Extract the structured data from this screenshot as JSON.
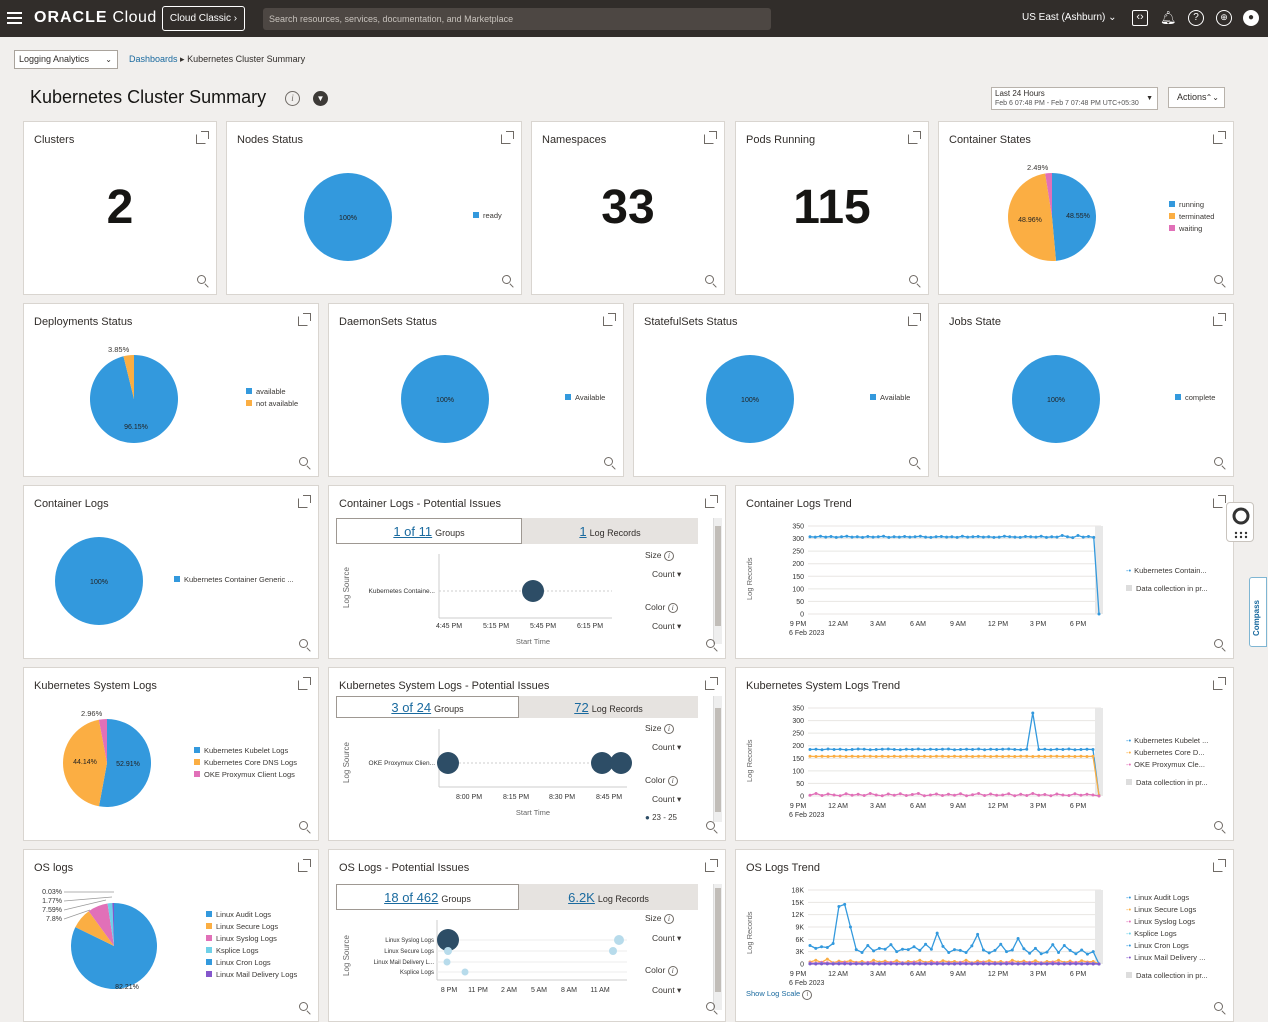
{
  "topbar": {
    "brand": "ORACLE",
    "brand_suffix": "Cloud",
    "classic_button": "Cloud Classic",
    "search_placeholder": "Search resources, services, documentation, and Marketplace",
    "region": "US East (Ashburn)"
  },
  "nav": {
    "service_select": "Logging Analytics",
    "crumb_link": "Dashboards",
    "crumb_current": "Kubernetes Cluster Summary"
  },
  "page": {
    "title": "Kubernetes Cluster Summary",
    "time_label": "Last 24 Hours",
    "time_range": "Feb 6 07:48 PM - Feb 7 07:48 PM UTC+05:30",
    "actions_label": "Actions",
    "compass_label": "Compass"
  },
  "colors": {
    "blue": "#3399dd",
    "orange": "#fbae43",
    "pink": "#e170b8",
    "cyan": "#6fd0e8",
    "purple": "#8557cc",
    "dark_bubble": "#2d4d66",
    "light_bubble": "#b7dbeb"
  },
  "widgets": {
    "clusters": {
      "title": "Clusters",
      "value": "2"
    },
    "nodes": {
      "title": "Nodes Status",
      "slice_label": "100%",
      "legend": [
        "ready"
      ]
    },
    "namespaces": {
      "title": "Namespaces",
      "value": "33"
    },
    "pods": {
      "title": "Pods Running",
      "value": "115"
    },
    "container_states": {
      "title": "Container States",
      "labels": [
        "48.55%",
        "48.96%",
        "2.49%"
      ],
      "legend": [
        "running",
        "terminated",
        "waiting"
      ]
    },
    "deployments": {
      "title": "Deployments Status",
      "labels": [
        "96.15%",
        "3.85%"
      ],
      "legend": [
        "available",
        "not available"
      ]
    },
    "daemonsets": {
      "title": "DaemonSets Status",
      "slice_label": "100%",
      "legend": [
        "Available"
      ]
    },
    "statefulsets": {
      "title": "StatefulSets Status",
      "slice_label": "100%",
      "legend": [
        "Available"
      ]
    },
    "jobs": {
      "title": "Jobs State",
      "slice_label": "100%",
      "legend": [
        "complete"
      ]
    },
    "container_logs": {
      "title": "Container Logs",
      "slice_label": "100%",
      "legend": [
        "Kubernetes Container Generic ..."
      ]
    },
    "container_issues": {
      "title": "Container Logs - Potential Issues",
      "groups_link": "1 of 11",
      "groups_label": "Groups",
      "records_link": "1",
      "records_label": "Log Records",
      "y_axis": "Log Source",
      "x_axis": "Start Time",
      "rows": [
        "Kubernetes Containe..."
      ],
      "ticks": [
        "4:45 PM",
        "5:15 PM",
        "5:45 PM",
        "6:15 PM"
      ],
      "size_label": "Size",
      "size_value": "Count",
      "color_label": "Color",
      "color_value": "Count"
    },
    "container_trend": {
      "title": "Container Logs Trend",
      "y_axis": "Log Records",
      "y_ticks": [
        "350",
        "300",
        "250",
        "200",
        "150",
        "100",
        "50",
        "0"
      ],
      "x_ticks": [
        "9 PM",
        "12 AM",
        "3 AM",
        "6 AM",
        "9 AM",
        "12 PM",
        "3 PM",
        "6 PM"
      ],
      "x_sub": "6 Feb 2023",
      "legend": [
        "Kubernetes Contain...",
        "Data collection in pr..."
      ]
    },
    "k8s_logs": {
      "title": "Kubernetes System Logs",
      "labels": [
        "52.91%",
        "44.14%",
        "2.96%"
      ],
      "legend": [
        "Kubernetes Kubelet Logs",
        "Kubernetes Core DNS Logs",
        "OKE Proxymux Client Logs"
      ]
    },
    "k8s_issues": {
      "title": "Kubernetes System Logs - Potential Issues",
      "groups_link": "3 of 24",
      "groups_label": "Groups",
      "records_link": "72",
      "records_label": "Log Records",
      "y_axis": "Log Source",
      "x_axis": "Start Time",
      "rows": [
        "OKE Proxymux Clien..."
      ],
      "ticks": [
        "8:00 PM",
        "8:15 PM",
        "8:30 PM",
        "8:45 PM"
      ],
      "size_label": "Size",
      "size_value": "Count",
      "color_label": "Color",
      "color_value": "Count",
      "color_range": "23 - 25"
    },
    "k8s_trend": {
      "title": "Kubernetes System Logs Trend",
      "y_axis": "Log Records",
      "y_ticks": [
        "350",
        "300",
        "250",
        "200",
        "150",
        "100",
        "50",
        "0"
      ],
      "x_ticks": [
        "9 PM",
        "12 AM",
        "3 AM",
        "6 AM",
        "9 AM",
        "12 PM",
        "3 PM",
        "6 PM"
      ],
      "x_sub": "6 Feb 2023",
      "legend": [
        "Kubernetes Kubelet ...",
        "Kubernetes Core D...",
        "OKE Proxymux Cle...",
        "Data collection in pr..."
      ]
    },
    "os_logs": {
      "title": "OS logs",
      "labels": [
        "82.21%",
        "7.8%",
        "7.59%",
        "1.77%",
        "0.03%"
      ],
      "legend": [
        "Linux Audit Logs",
        "Linux Secure Logs",
        "Linux Syslog Logs",
        "Ksplice Logs",
        "Linux Cron Logs",
        "Linux Mail Delivery Logs"
      ]
    },
    "os_issues": {
      "title": "OS Logs - Potential Issues",
      "groups_link": "18 of 462",
      "groups_label": "Groups",
      "records_link": "6.2K",
      "records_label": "Log Records",
      "y_axis": "Log Source",
      "rows": [
        "Linux Syslog Logs",
        "Linux Secure Logs",
        "Linux Mail Delivery L...",
        "Ksplice Logs"
      ],
      "ticks": [
        "8 PM",
        "11 PM",
        "2 AM",
        "5 AM",
        "8 AM",
        "11 AM"
      ],
      "size_label": "Size",
      "size_value": "Count",
      "color_label": "Color",
      "color_value": "Count"
    },
    "os_trend": {
      "title": "OS Logs Trend",
      "y_axis": "Log Records",
      "y_ticks": [
        "18K",
        "15K",
        "12K",
        "9K",
        "6K",
        "3K",
        "0"
      ],
      "x_ticks": [
        "9 PM",
        "12 AM",
        "3 AM",
        "6 AM",
        "9 AM",
        "12 PM",
        "3 PM",
        "6 PM"
      ],
      "x_sub": "6 Feb 2023",
      "legend": [
        "Linux Audit Logs",
        "Linux Secure Logs",
        "Linux Syslog Logs",
        "Ksplice Logs",
        "Linux Cron Logs",
        "Linux Mail Delivery ...",
        "Data collection in pr..."
      ],
      "show_log_scale": "Show Log Scale"
    }
  },
  "chart_data": [
    {
      "type": "pie",
      "title": "Nodes Status",
      "labels": [
        "ready"
      ],
      "values": [
        100
      ]
    },
    {
      "type": "pie",
      "title": "Container States",
      "labels": [
        "running",
        "terminated",
        "waiting"
      ],
      "values": [
        48.55,
        48.96,
        2.49
      ]
    },
    {
      "type": "pie",
      "title": "Deployments Status",
      "labels": [
        "available",
        "not available"
      ],
      "values": [
        96.15,
        3.85
      ]
    },
    {
      "type": "pie",
      "title": "DaemonSets Status",
      "labels": [
        "Available"
      ],
      "values": [
        100
      ]
    },
    {
      "type": "pie",
      "title": "StatefulSets Status",
      "labels": [
        "Available"
      ],
      "values": [
        100
      ]
    },
    {
      "type": "pie",
      "title": "Jobs State",
      "labels": [
        "complete"
      ],
      "values": [
        100
      ]
    },
    {
      "type": "pie",
      "title": "Container Logs",
      "labels": [
        "Kubernetes Container Generic ..."
      ],
      "values": [
        100
      ]
    },
    {
      "type": "pie",
      "title": "Kubernetes System Logs",
      "labels": [
        "Kubernetes Kubelet Logs",
        "Kubernetes Core DNS Logs",
        "OKE Proxymux Client Logs"
      ],
      "values": [
        52.91,
        44.14,
        2.96
      ]
    },
    {
      "type": "pie",
      "title": "OS logs",
      "labels": [
        "Linux Audit Logs",
        "Linux Secure Logs",
        "Linux Syslog Logs",
        "Ksplice Logs",
        "Linux Cron Logs",
        "Linux Mail Delivery Logs"
      ],
      "values": [
        82.21,
        7.8,
        7.59,
        1.77,
        0.03,
        0.6
      ]
    },
    {
      "type": "line",
      "title": "Container Logs Trend",
      "ylabel": "Log Records",
      "ylim": [
        0,
        350
      ],
      "series": [
        {
          "name": "Kubernetes Contain...",
          "values": [
            307,
            306,
            309,
            306,
            308,
            305,
            307,
            309,
            306,
            307,
            305,
            308,
            306,
            307,
            309,
            305,
            307,
            306,
            308,
            306,
            307,
            309,
            306,
            305,
            307,
            308,
            306,
            307,
            305,
            309,
            306,
            307,
            308,
            306,
            307,
            305,
            306,
            309,
            307,
            306,
            305,
            308,
            307,
            306,
            309,
            305,
            307,
            306,
            312,
            307,
            304,
            312,
            306,
            308,
            305,
            0
          ]
        }
      ]
    },
    {
      "type": "line",
      "title": "Kubernetes System Logs Trend",
      "ylabel": "Log Records",
      "ylim": [
        0,
        350
      ],
      "series": [
        {
          "name": "Kubernetes Kubelet ...",
          "values": [
            185,
            186,
            184,
            187,
            185,
            186,
            184,
            185,
            187,
            186,
            184,
            185,
            186,
            187,
            185,
            184,
            186,
            185,
            187,
            184,
            186,
            185,
            186,
            187,
            184,
            185,
            186,
            185,
            187,
            184,
            186,
            185,
            186,
            187,
            185,
            184,
            186,
            330,
            185,
            186,
            184,
            186,
            185,
            187,
            184,
            185,
            186,
            185,
            2
          ]
        },
        {
          "name": "Kubernetes Core D...",
          "values": [
            158,
            157,
            158,
            157,
            158,
            158,
            157,
            158,
            157,
            158,
            158,
            157,
            158,
            157,
            158,
            157,
            158,
            158,
            157,
            158,
            157,
            158,
            158,
            157,
            158,
            157,
            158,
            157,
            158,
            158,
            157,
            158,
            157,
            158,
            157,
            158,
            158,
            157,
            158,
            157,
            158,
            158,
            157,
            158,
            157,
            158,
            157,
            158,
            2
          ]
        },
        {
          "name": "OKE Proxymux Cle...",
          "values": [
            3,
            10,
            2,
            8,
            4,
            1,
            9,
            3,
            7,
            2,
            10,
            4,
            1,
            8,
            3,
            9,
            2,
            6,
            10,
            1,
            4,
            8,
            2,
            7,
            3,
            9,
            1,
            5,
            10,
            2,
            8,
            3,
            4,
            9,
            1,
            7,
            2,
            10,
            3,
            6,
            1,
            8,
            4,
            2,
            9,
            3,
            7,
            4,
            0
          ]
        }
      ]
    },
    {
      "type": "line",
      "title": "OS Logs Trend",
      "ylabel": "Log Records",
      "ylim": [
        0,
        18000
      ],
      "series": [
        {
          "name": "Linux Audit Logs",
          "values": [
            4500,
            3800,
            4200,
            4000,
            5000,
            14000,
            14500,
            9000,
            3500,
            2800,
            4500,
            3200,
            3800,
            3600,
            4700,
            3000,
            3600,
            3500,
            4200,
            3300,
            4800,
            3600,
            7500,
            4300,
            2800,
            3500,
            3300,
            2800,
            4400,
            7200,
            3400,
            2700,
            3300,
            4800,
            3000,
            3400,
            6200,
            3700,
            2600,
            3800,
            2500,
            2900,
            4700,
            2800,
            4500,
            3300,
            2500,
            3400,
            2400,
            3000,
            0
          ]
        },
        {
          "name": "Linux Secure Logs",
          "values": [
            500,
            900,
            400,
            1200,
            300,
            700,
            500,
            800,
            400,
            600,
            300,
            900,
            500,
            700,
            400,
            800,
            300,
            600,
            500,
            900,
            400,
            700,
            300,
            800,
            500,
            600,
            400,
            900,
            300,
            700,
            500,
            800,
            400,
            600,
            300,
            900,
            500,
            700,
            400,
            800,
            300,
            600,
            500,
            900,
            400,
            700,
            300,
            800,
            500,
            600,
            0
          ]
        },
        {
          "name": "Linux Syslog Logs",
          "values": [
            300,
            200,
            400,
            300,
            200,
            300,
            400,
            200,
            300,
            200,
            400,
            300,
            200,
            300,
            400,
            200,
            300,
            200,
            400,
            300,
            200,
            300,
            400,
            200,
            300,
            200,
            400,
            300,
            200,
            300,
            400,
            200,
            300,
            200,
            400,
            300,
            200,
            300,
            400,
            200,
            300,
            200,
            400,
            300,
            200,
            300,
            400,
            200,
            300,
            200,
            0
          ]
        },
        {
          "name": "Ksplice Logs",
          "values": [
            100,
            80,
            120,
            90,
            100,
            110,
            90,
            100,
            80,
            120,
            90,
            100,
            110,
            90,
            100,
            80,
            120,
            90,
            100,
            110,
            90,
            100,
            80,
            120,
            90,
            100,
            110,
            90,
            100,
            80,
            120,
            90,
            100,
            110,
            90,
            100,
            80,
            120,
            90,
            100,
            110,
            90,
            100,
            80,
            120,
            90,
            100,
            110,
            90,
            100,
            0
          ]
        },
        {
          "name": "Linux Cron Logs",
          "values": [
            50,
            40,
            60,
            50,
            40,
            50,
            60,
            40,
            50,
            40,
            60,
            50,
            40,
            50,
            60,
            40,
            50,
            40,
            60,
            50,
            40,
            50,
            60,
            40,
            50,
            40,
            60,
            50,
            40,
            50,
            60,
            40,
            50,
            40,
            60,
            50,
            40,
            50,
            60,
            40,
            50,
            40,
            60,
            50,
            40,
            50,
            60,
            40,
            50,
            40,
            0
          ]
        },
        {
          "name": "Linux Mail Delivery ...",
          "values": [
            20,
            10,
            30,
            20,
            10,
            20,
            30,
            10,
            20,
            10,
            30,
            20,
            10,
            20,
            30,
            10,
            20,
            10,
            30,
            20,
            10,
            20,
            30,
            10,
            20,
            10,
            30,
            20,
            10,
            20,
            30,
            10,
            20,
            10,
            30,
            20,
            10,
            20,
            30,
            10,
            20,
            10,
            30,
            20,
            10,
            20,
            30,
            10,
            20,
            10,
            0
          ]
        }
      ]
    }
  ]
}
